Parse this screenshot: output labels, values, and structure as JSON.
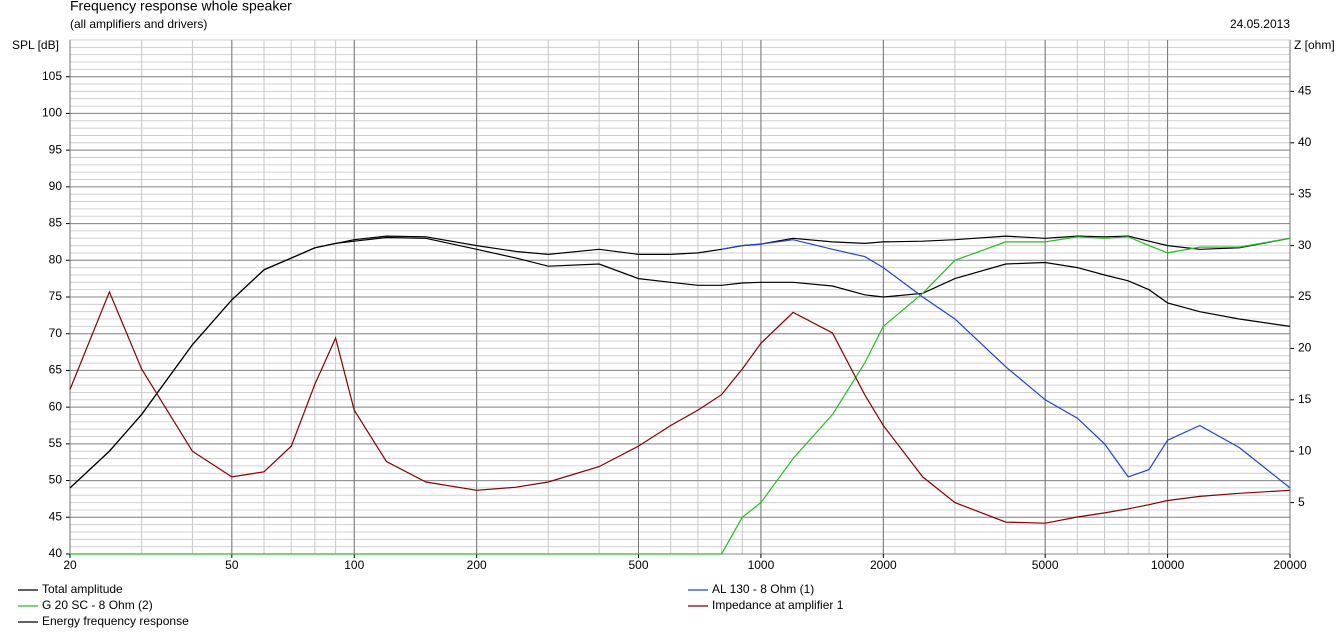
{
  "chart_data": {
    "type": "line",
    "title": "Frequency response whole speaker",
    "subtitle": "(all amplifiers and drivers)",
    "date": "24.05.2013",
    "y_label": "SPL [dB]",
    "y2_label": "Z [ohm]",
    "log_x": true,
    "grid": true,
    "x": [
      20,
      25,
      30,
      40,
      50,
      60,
      70,
      80,
      90,
      100,
      120,
      150,
      200,
      250,
      300,
      400,
      500,
      600,
      700,
      800,
      900,
      1000,
      1200,
      1500,
      1800,
      2000,
      2500,
      3000,
      4000,
      5000,
      6000,
      7000,
      8000,
      9000,
      10000,
      12000,
      15000,
      20000
    ],
    "xlim": [
      20,
      20000
    ],
    "xticks": [
      20,
      50,
      100,
      200,
      500,
      1000,
      2000,
      5000,
      10000,
      20000
    ],
    "ylim": [
      40,
      110
    ],
    "yticks": [
      40,
      45,
      50,
      55,
      60,
      65,
      70,
      75,
      80,
      85,
      90,
      95,
      100,
      105
    ],
    "y2lim": [
      0,
      50
    ],
    "y2ticks": [
      5,
      10,
      15,
      20,
      25,
      30,
      35,
      40,
      45
    ],
    "series": [
      {
        "name": "Total amplitude",
        "color": "#000000",
        "values": [
          49,
          54,
          59,
          68.5,
          74.6,
          78.7,
          80.3,
          81.7,
          82.3,
          82.8,
          83.3,
          83.2,
          82,
          81.2,
          80.8,
          81.5,
          80.8,
          80.8,
          81,
          81.5,
          82,
          82.2,
          83,
          82.5,
          82.3,
          82.5,
          82.6,
          82.8,
          83.3,
          83,
          83.3,
          83.2,
          83.3,
          82.6,
          82,
          81.5,
          81.7,
          83
        ]
      },
      {
        "name": "Energy frequency response",
        "color": "#000000",
        "values": [
          49,
          54,
          59,
          68.5,
          74.6,
          78.7,
          80.3,
          81.7,
          82.3,
          82.6,
          83.1,
          83,
          81.5,
          80.3,
          79.2,
          79.5,
          77.5,
          77,
          76.6,
          76.6,
          76.9,
          77,
          77,
          76.5,
          75.3,
          75,
          75.5,
          77.5,
          79.5,
          79.7,
          79,
          78,
          77.2,
          76,
          74.2,
          73,
          72,
          71
        ]
      },
      {
        "name": "AL 130 - 8 Ohm (1)",
        "color": "#2040e0",
        "values": [
          null,
          null,
          null,
          null,
          null,
          null,
          null,
          null,
          null,
          null,
          null,
          null,
          null,
          null,
          null,
          null,
          null,
          null,
          null,
          81.5,
          82,
          82.2,
          82.8,
          81.5,
          80.5,
          79,
          75,
          72,
          65.5,
          61,
          58.5,
          55,
          50.5,
          51.5,
          55.5,
          57.5,
          54.5,
          49
        ]
      },
      {
        "name": "G 20 SC - 8 Ohm (2)",
        "color": "#20c020",
        "values": [
          40,
          40,
          40,
          40,
          40,
          40,
          40,
          40,
          40,
          40,
          40,
          40,
          40,
          40,
          40,
          40,
          40,
          40,
          40,
          40,
          45,
          47,
          53,
          59,
          66,
          71,
          75.5,
          80,
          82.5,
          82.5,
          83.2,
          83,
          83.2,
          82,
          81,
          81.8,
          81.8,
          83
        ]
      },
      {
        "name": "Impedance at amplifier 1",
        "color": "#8b0000",
        "axis": "y2",
        "values": [
          16,
          25.5,
          18,
          10,
          7.5,
          8,
          10.5,
          16.5,
          21,
          14,
          9,
          7,
          6.2,
          6.5,
          7,
          8.5,
          10.5,
          12.5,
          14,
          15.5,
          18,
          20.5,
          23.5,
          21.5,
          15.5,
          12.5,
          7.5,
          5,
          3.1,
          3,
          3.6,
          4,
          4.4,
          4.8,
          5.2,
          5.6,
          5.9,
          6.2
        ]
      }
    ]
  }
}
